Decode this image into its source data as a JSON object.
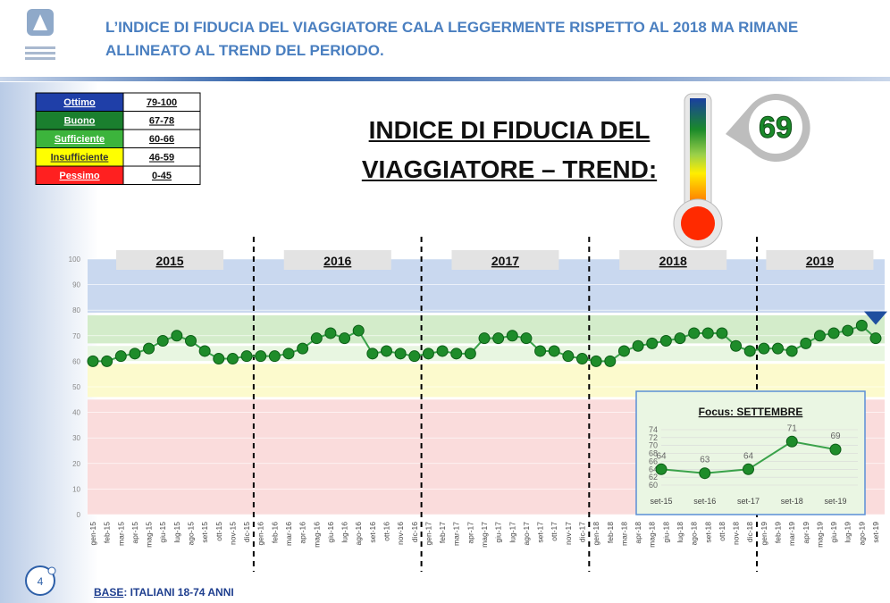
{
  "header": {
    "title": "L’INDICE DI FIDUCIA DEL VIAGGIATORE CALA LEGGERMENTE RISPETTO AL 2018 MA RIMANE ALLINEATO AL TREND DEL PERIODO."
  },
  "legend_table": {
    "rows": [
      [
        "Ottimo",
        "79-100"
      ],
      [
        "Buono",
        "67-78"
      ],
      [
        "Sufficiente",
        "60-66"
      ],
      [
        "Insufficiente",
        "46-59"
      ],
      [
        "Pessimo",
        "0-45"
      ]
    ],
    "colors": [
      "#1f3fa8",
      "#1a7f2e",
      "#3cb43c",
      "#ffff00",
      "#ff2020"
    ]
  },
  "heading": "INDICE DI FIDUCIA DEL VIAGGIATORE – TREND:",
  "thermometer": {
    "value": 69
  },
  "chart_data": [
    {
      "type": "line",
      "categories": [
        "gen-15",
        "feb-15",
        "mar-15",
        "apr-15",
        "mag-15",
        "giu-15",
        "lug-15",
        "ago-15",
        "set-15",
        "ott-15",
        "nov-15",
        "dic-15",
        "gen-16",
        "feb-16",
        "mar-16",
        "apr-16",
        "mag-16",
        "giu-16",
        "lug-16",
        "ago-16",
        "set-16",
        "ott-16",
        "nov-16",
        "dic-16",
        "gen-17",
        "feb-17",
        "mar-17",
        "apr-17",
        "mag-17",
        "giu-17",
        "lug-17",
        "ago-17",
        "set-17",
        "ott-17",
        "nov-17",
        "dic-17",
        "gen-18",
        "feb-18",
        "mar-18",
        "apr-18",
        "mag-18",
        "giu-18",
        "lug-18",
        "ago-18",
        "set-18",
        "ott-18",
        "nov-18",
        "dic-18",
        "gen-19",
        "feb-19",
        "mar-19",
        "apr-19",
        "mag-19",
        "giu-19",
        "lug-19",
        "ago-19",
        "set-19"
      ],
      "values": [
        60,
        60,
        62,
        63,
        65,
        68,
        70,
        68,
        64,
        61,
        61,
        62,
        62,
        62,
        63,
        65,
        69,
        71,
        69,
        72,
        63,
        64,
        63,
        62,
        63,
        64,
        63,
        63,
        69,
        69,
        70,
        69,
        64,
        64,
        62,
        61,
        60,
        60,
        64,
        66,
        67,
        68,
        69,
        71,
        71,
        71,
        66,
        64,
        65,
        65,
        64,
        67,
        70,
        71,
        72,
        74,
        69
      ],
      "color": "#1e8c2a",
      "ylim": [
        0,
        100
      ],
      "yticks": [
        0,
        10,
        20,
        30,
        40,
        50,
        60,
        70,
        80,
        90,
        100
      ],
      "years": [
        "2015",
        "2016",
        "2017",
        "2018",
        "2019"
      ],
      "bands": [
        {
          "range": [
            79,
            100
          ],
          "color": "#c9d8ef"
        },
        {
          "range": [
            67,
            78
          ],
          "color": "#d3ecca"
        },
        {
          "range": [
            60,
            66
          ],
          "color": "#e8f6e1"
        },
        {
          "range": [
            46,
            59
          ],
          "color": "#fcfacd"
        },
        {
          "range": [
            0,
            45
          ],
          "color": "#fadcdc"
        }
      ]
    },
    {
      "type": "line",
      "title": "Focus: SETTEMBRE",
      "categories": [
        "set-15",
        "set-16",
        "set-17",
        "set-18",
        "set-19"
      ],
      "values": [
        64,
        63,
        64,
        71,
        69
      ],
      "color": "#1e8c2a",
      "ylim": [
        60,
        74
      ],
      "yticks": [
        60,
        62,
        64,
        66,
        68,
        70,
        72,
        74
      ]
    }
  ],
  "footer": {
    "base_label": "BASE",
    "base_text": ": ITALIANI 18-74 ANNI",
    "page": 4
  }
}
